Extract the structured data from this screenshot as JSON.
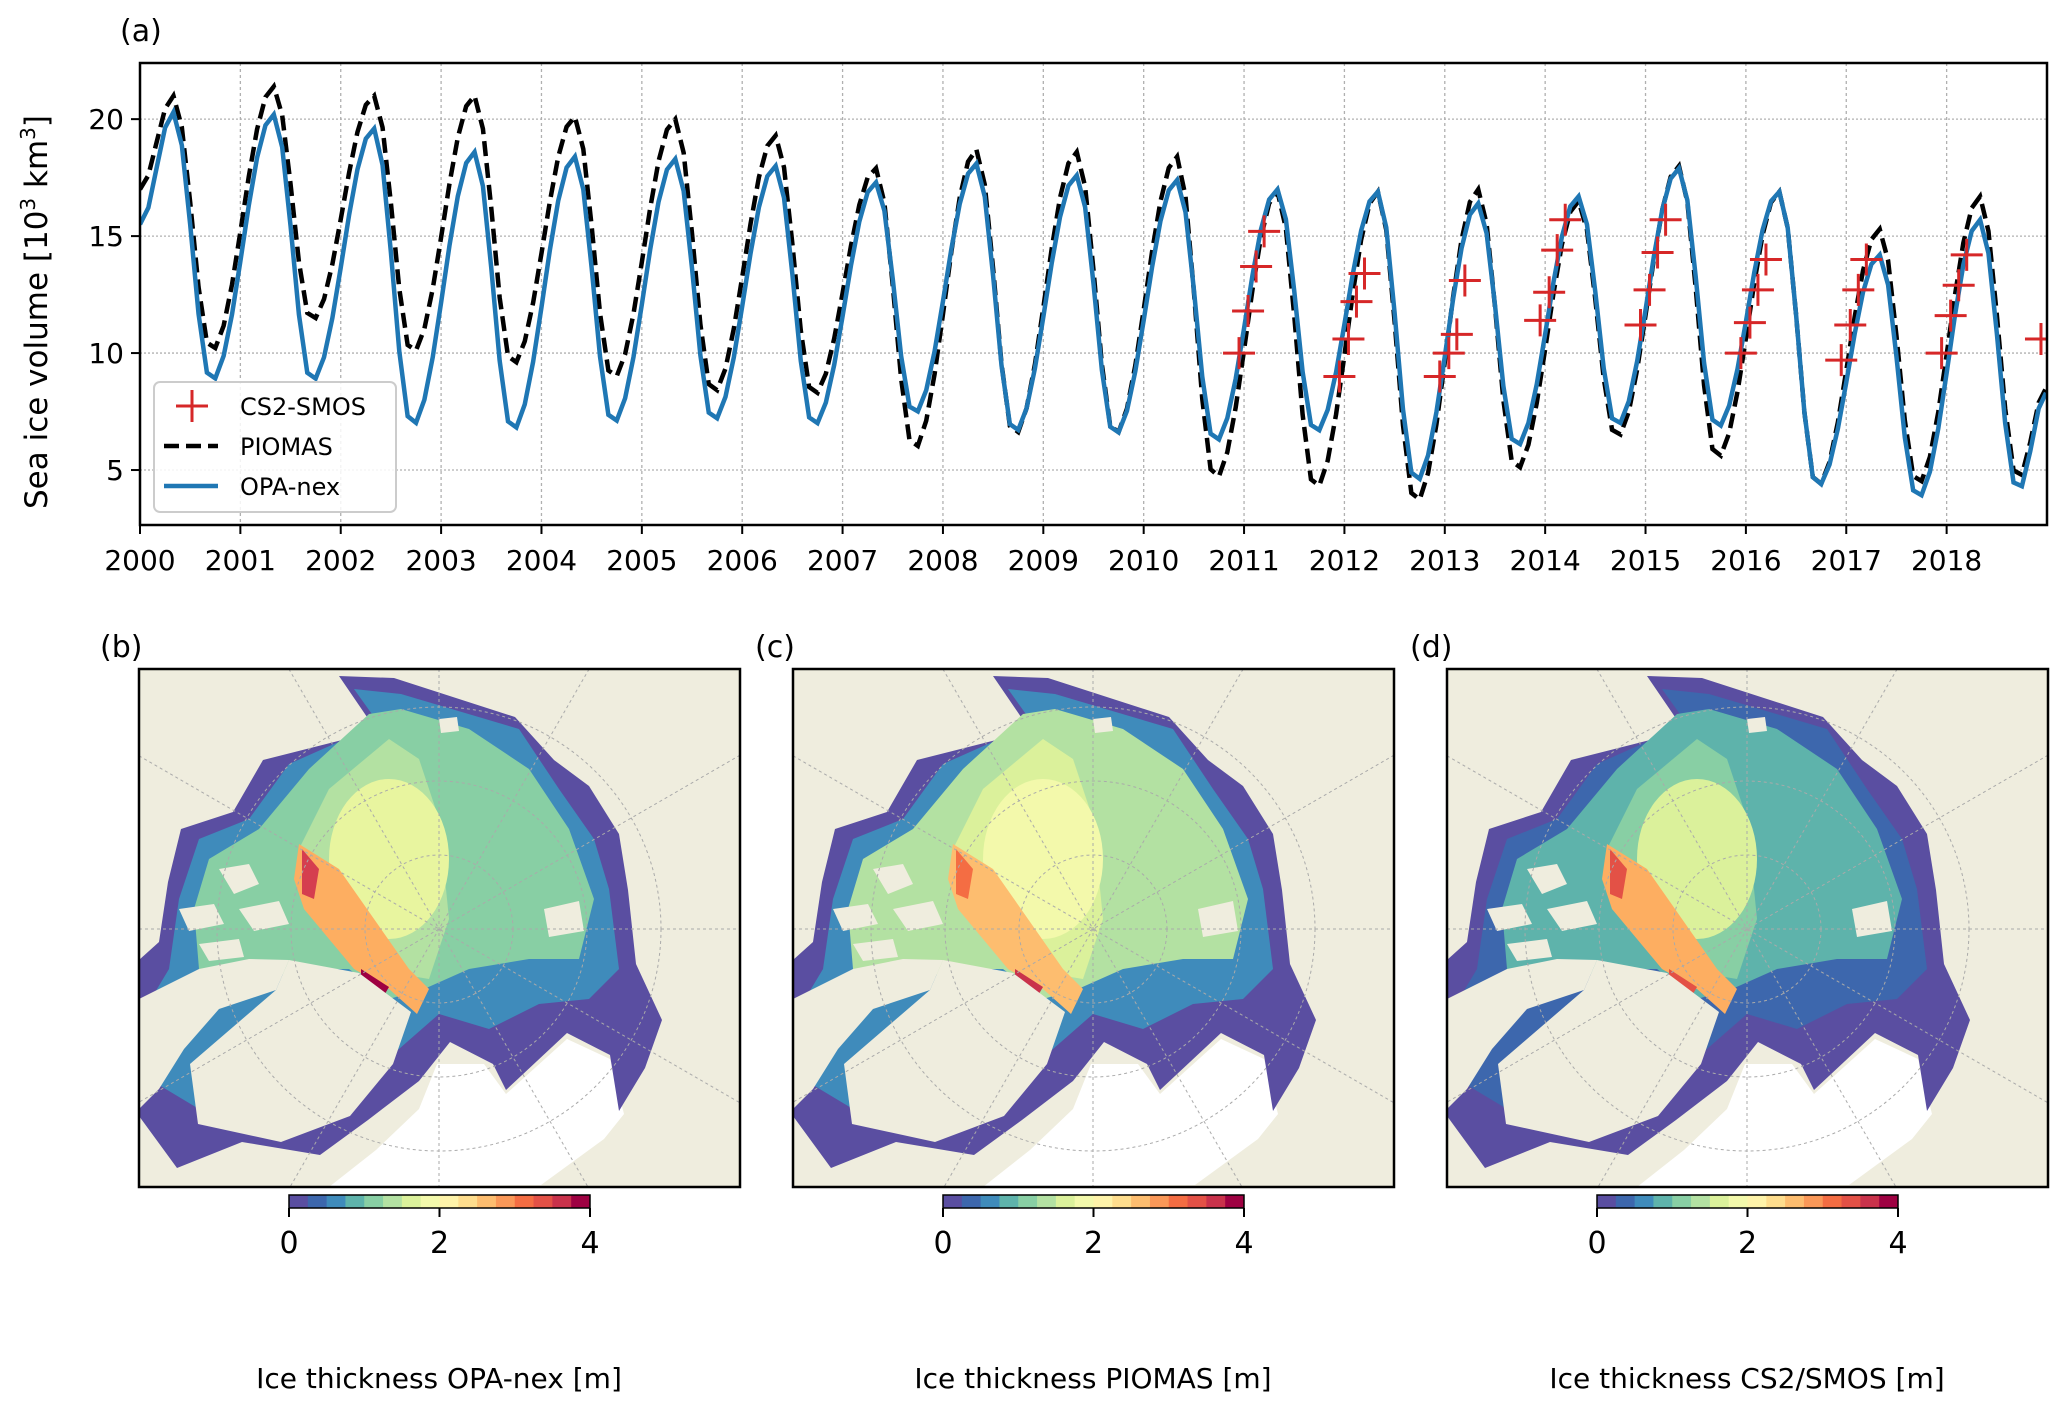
{
  "chart_data": [
    {
      "type": "line",
      "panel_label": "(a)",
      "ylabel": "Sea ice volume [10",
      "ylabel_sup": "3",
      "ylabel_unit": " km",
      "ylabel_sup2": "3",
      "ylabel_end": "]",
      "xlim": [
        2000,
        2019
      ],
      "ylim": [
        2.65,
        22.4
      ],
      "yticks": [
        5,
        10,
        15,
        20
      ],
      "xticks": [
        2000,
        2001,
        2002,
        2003,
        2004,
        2005,
        2006,
        2007,
        2008,
        2009,
        2010,
        2011,
        2012,
        2013,
        2014,
        2015,
        2016,
        2017,
        2018
      ],
      "grid": true,
      "legend_position": "lower-left",
      "series": [
        {
          "name": "CS2-SMOS",
          "style": "markers-plus",
          "color": "#d62728",
          "points": [
            [
              2010.95,
              10.0
            ],
            [
              2011.04,
              11.8
            ],
            [
              2011.12,
              13.7
            ],
            [
              2011.2,
              15.2
            ],
            [
              2011.95,
              9.0
            ],
            [
              2012.04,
              10.6
            ],
            [
              2012.12,
              12.2
            ],
            [
              2012.2,
              13.4
            ],
            [
              2012.95,
              9.0
            ],
            [
              2013.04,
              10.0
            ],
            [
              2013.12,
              10.8
            ],
            [
              2013.2,
              13.1
            ],
            [
              2013.95,
              11.4
            ],
            [
              2014.04,
              12.6
            ],
            [
              2014.12,
              14.4
            ],
            [
              2014.2,
              15.7
            ],
            [
              2014.95,
              11.2
            ],
            [
              2015.04,
              12.7
            ],
            [
              2015.12,
              14.3
            ],
            [
              2015.2,
              15.7
            ],
            [
              2015.95,
              10.0
            ],
            [
              2016.04,
              11.3
            ],
            [
              2016.12,
              12.7
            ],
            [
              2016.2,
              14.0
            ],
            [
              2016.95,
              9.7
            ],
            [
              2017.04,
              11.2
            ],
            [
              2017.12,
              12.7
            ],
            [
              2017.2,
              14.0
            ],
            [
              2017.95,
              10.0
            ],
            [
              2018.04,
              11.6
            ],
            [
              2018.12,
              12.9
            ],
            [
              2018.2,
              14.2
            ],
            [
              2018.94,
              10.6
            ]
          ]
        },
        {
          "name": "PIOMAS",
          "style": "dashed",
          "color": "#000000",
          "start": 17.0,
          "end": 8.5,
          "annual_max": [
            21.0,
            21.4,
            21.0,
            21.0,
            20.1,
            20.0,
            19.3,
            17.9,
            18.7,
            18.6,
            18.4,
            16.9,
            16.9,
            17.0,
            16.5,
            18.0,
            16.9,
            15.3,
            16.7
          ],
          "annual_min": [
            10.1,
            11.4,
            10.0,
            9.5,
            8.9,
            8.3,
            8.2,
            5.9,
            6.5,
            6.5,
            4.6,
            4.2,
            3.6,
            5.0,
            6.4,
            5.5,
            4.3,
            4.4,
            4.6
          ]
        },
        {
          "name": "OPA-nex",
          "style": "solid",
          "color": "#1f77b4",
          "start": 15.5,
          "end": 8.3,
          "annual_max": [
            20.3,
            20.2,
            19.6,
            18.6,
            18.4,
            18.3,
            18.0,
            17.3,
            18.1,
            17.6,
            17.4,
            17.0,
            16.9,
            16.4,
            16.7,
            17.9,
            16.9,
            14.2,
            15.7
          ],
          "annual_min": [
            8.8,
            8.8,
            6.9,
            6.7,
            7.0,
            7.1,
            6.9,
            7.4,
            6.6,
            6.5,
            6.2,
            6.6,
            4.5,
            6.0,
            6.9,
            6.8,
            4.3,
            3.8,
            4.1
          ]
        }
      ]
    }
  ],
  "maps": [
    {
      "panel_label": "(b)",
      "colorbar_label": "Ice thickness OPA-nex [m]",
      "colorbar_ticks": [
        "0",
        "2",
        "4"
      ],
      "colors": {
        "rim": "#5a4ea1",
        "mid": "#3f8bbb",
        "outer": "#88cfa4",
        "inner": "#b3e1a2",
        "core": "#e8f59f",
        "warm": "#fdae61",
        "hot": "#d53e4f",
        "peak": "#9e0142"
      }
    },
    {
      "panel_label": "(c)",
      "colorbar_label": "Ice thickness PIOMAS [m]",
      "colorbar_ticks": [
        "0",
        "2",
        "4"
      ],
      "colors": {
        "rim": "#5a4ea1",
        "mid": "#3f8bbb",
        "outer": "#b3e1a2",
        "inner": "#dbf19b",
        "core": "#f3f9ab",
        "warm": "#fdbd6f",
        "hot": "#f46d43",
        "peak": "#c9324b"
      }
    },
    {
      "panel_label": "(d)",
      "colorbar_label": "Ice thickness CS2/SMOS [m]",
      "colorbar_ticks": [
        "0",
        "2",
        "4"
      ],
      "colors": {
        "rim": "#5a4ea1",
        "mid": "#3d67ad",
        "outer": "#5eb3ab",
        "inner": "#88cfa4",
        "core": "#dbf19b",
        "warm": "#fdae61",
        "hot": "#e35146",
        "peak": "#e35146"
      }
    }
  ],
  "colormap": [
    "#5a4ea1",
    "#3d67ad",
    "#3f8bbb",
    "#5eb3ab",
    "#88cfa4",
    "#b3e1a2",
    "#dbf19b",
    "#f3f9ab",
    "#fef3a9",
    "#fedd8d",
    "#fdbd6f",
    "#fa9858",
    "#f46d43",
    "#e35146",
    "#c9324b",
    "#9e0142"
  ],
  "land_color": "#efedde"
}
